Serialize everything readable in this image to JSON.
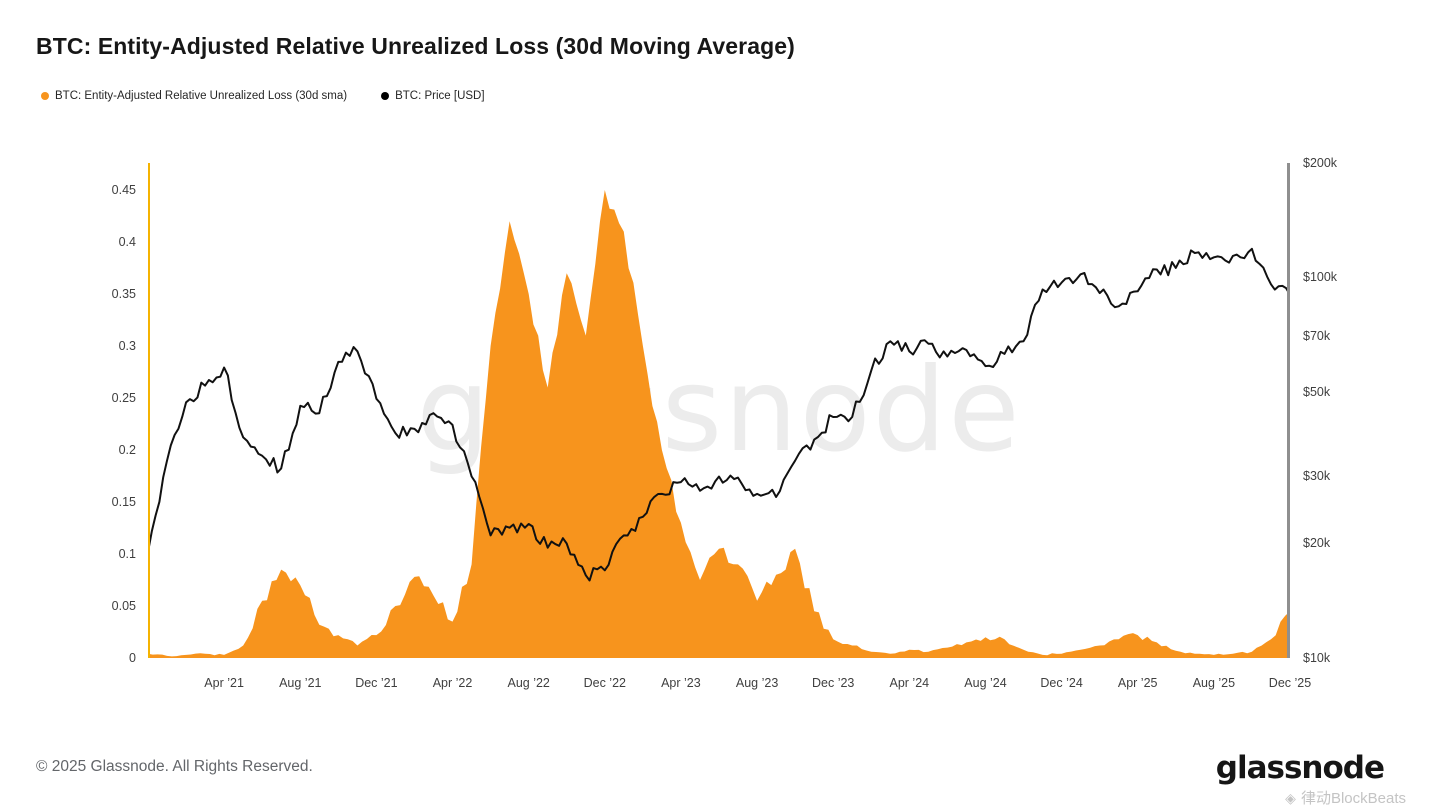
{
  "header": {
    "title": "BTC: Entity-Adjusted Relative Unrealized Loss (30d Moving Average)"
  },
  "legend": [
    {
      "label": "BTC: Entity-Adjusted Relative Unrealized Loss (30d sma)",
      "color": "#F7941D"
    },
    {
      "label": "BTC: Price [USD]",
      "color": "#000000"
    }
  ],
  "chart": {
    "watermark": "glassnode"
  },
  "chart_data": {
    "type": "area+line",
    "x_start": "Dec 2020",
    "x_interval": "month",
    "n_points": 61,
    "x_months": [
      "Dec '20",
      "Jan '21",
      "Feb '21",
      "Mar '21",
      "Apr '21",
      "May '21",
      "Jun '21",
      "Jul '21",
      "Aug '21",
      "Sep '21",
      "Oct '21",
      "Nov '21",
      "Dec '21",
      "Jan '22",
      "Feb '22",
      "Mar '22",
      "Apr '22",
      "May '22",
      "Jun '22",
      "Jul '22",
      "Aug '22",
      "Sep '22",
      "Oct '22",
      "Nov '22",
      "Dec '22",
      "Jan '23",
      "Feb '23",
      "Mar '23",
      "Apr '23",
      "May '23",
      "Jun '23",
      "Jul '23",
      "Aug '23",
      "Sep '23",
      "Oct '23",
      "Nov '23",
      "Dec '23",
      "Jan '24",
      "Feb '24",
      "Mar '24",
      "Apr '24",
      "May '24",
      "Jun '24",
      "Jul '24",
      "Aug '24",
      "Sep '24",
      "Oct '24",
      "Nov '24",
      "Dec '24",
      "Jan '25",
      "Feb '25",
      "Mar '25",
      "Apr '25",
      "May '25",
      "Jun '25",
      "Jul '25",
      "Aug '25",
      "Sep '25",
      "Oct '25",
      "Nov '25",
      "Dec '25"
    ],
    "series": [
      {
        "name": "BTC: Entity-Adjusted Relative Unrealized Loss (30d sma)",
        "type": "area",
        "axis": "left",
        "color": "#F7941D",
        "values": [
          0.004,
          0.002,
          0.003,
          0.004,
          0.003,
          0.012,
          0.055,
          0.085,
          0.07,
          0.032,
          0.022,
          0.012,
          0.022,
          0.05,
          0.078,
          0.06,
          0.035,
          0.09,
          0.3,
          0.42,
          0.35,
          0.26,
          0.37,
          0.31,
          0.45,
          0.41,
          0.3,
          0.2,
          0.13,
          0.075,
          0.105,
          0.09,
          0.055,
          0.08,
          0.105,
          0.045,
          0.018,
          0.012,
          0.006,
          0.004,
          0.008,
          0.006,
          0.01,
          0.015,
          0.02,
          0.018,
          0.008,
          0.003,
          0.004,
          0.008,
          0.012,
          0.018,
          0.022,
          0.015,
          0.007,
          0.004,
          0.003,
          0.004,
          0.006,
          0.018,
          0.045
        ]
      },
      {
        "name": "BTC: Price [USD]",
        "type": "line",
        "axis": "right",
        "color": "#111111",
        "values": [
          19000,
          33000,
          47000,
          52000,
          58000,
          38000,
          34000,
          31500,
          46000,
          44000,
          60000,
          64000,
          48000,
          39000,
          40000,
          44000,
          41000,
          30000,
          21000,
          22000,
          22500,
          19500,
          20000,
          16500,
          17000,
          21000,
          23500,
          27000,
          29000,
          27500,
          30000,
          29800,
          27000,
          26500,
          33000,
          37500,
          43000,
          43000,
          57000,
          68000,
          64000,
          67000,
          62000,
          64500,
          58500,
          63000,
          68000,
          93000,
          97000,
          102000,
          91000,
          84000,
          92000,
          105000,
          106000,
          116000,
          113000,
          114000,
          119000,
          96000,
          90000
        ]
      }
    ],
    "left_axis": {
      "scale": "linear",
      "min": 0,
      "max": 0.45,
      "ticks": [
        "0.45",
        "0.4",
        "0.35",
        "0.3",
        "0.25",
        "0.2",
        "0.15",
        "0.1",
        "0.05",
        "0"
      ],
      "axis_line_color": "#F5B301"
    },
    "right_axis": {
      "scale": "log",
      "min": 10000,
      "max": 200000,
      "ticks": [
        "$200k",
        "$100k",
        "$70k",
        "$50k",
        "$30k",
        "$20k",
        "$10k"
      ],
      "tick_values": [
        200000,
        100000,
        70000,
        50000,
        30000,
        20000,
        10000
      ],
      "axis_line_color": "#8f8f8f"
    },
    "x_axis": {
      "tick_labels": [
        "Apr ’21",
        "Aug ’21",
        "Dec ’21",
        "Apr ’22",
        "Aug ’22",
        "Dec ’22",
        "Apr ’23",
        "Aug ’23",
        "Dec ’23",
        "Apr ’24",
        "Aug ’24",
        "Dec ’24",
        "Apr ’25",
        "Aug ’25",
        "Dec ’25"
      ],
      "tick_month_index": [
        4,
        8,
        12,
        16,
        20,
        24,
        28,
        32,
        36,
        40,
        44,
        48,
        52,
        56,
        60
      ]
    },
    "grid": false,
    "legend_position": "top-left"
  },
  "footer": {
    "copyright": "© 2025 Glassnode. All Rights Reserved.",
    "logo_text": "glassnode",
    "blockbeats": "律动BlockBeats"
  }
}
